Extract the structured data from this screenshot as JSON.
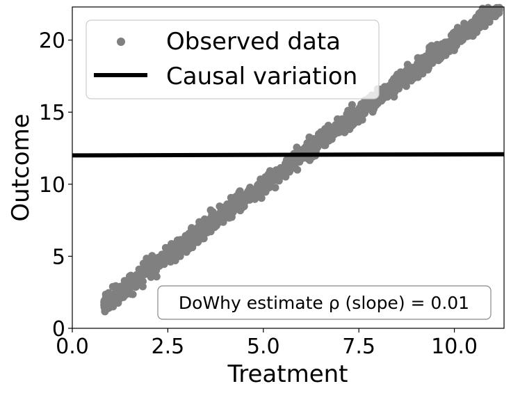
{
  "chart_data": {
    "type": "scatter",
    "title": "",
    "xlabel": "Treatment",
    "ylabel": "Outcome",
    "xlim": [
      0,
      11.3
    ],
    "ylim": [
      0,
      22.3
    ],
    "xticks": [
      0.0,
      2.5,
      5.0,
      7.5,
      10.0
    ],
    "xtick_labels": [
      "0.0",
      "2.5",
      "5.0",
      "7.5",
      "10.0"
    ],
    "yticks": [
      0,
      5,
      10,
      15,
      20
    ],
    "ytick_labels": [
      "0",
      "5",
      "10",
      "15",
      "20"
    ],
    "grid": false,
    "legend_position": "top-left",
    "series": [
      {
        "name": "Observed data",
        "kind": "scatter",
        "color": "#808080",
        "trend": {
          "slope": 2.0,
          "intercept": 0.0
        },
        "x_range": [
          0.8,
          11.2
        ],
        "spread": 0.6,
        "points_shown": 1200
      },
      {
        "name": "Causal variation",
        "kind": "line",
        "color": "#000000",
        "x": [
          0,
          11.3
        ],
        "y": [
          12.0,
          12.08
        ]
      }
    ],
    "annotation": {
      "text": "DoWhy estimate ρ (slope) = 0.01",
      "position": "bottom-right"
    }
  }
}
